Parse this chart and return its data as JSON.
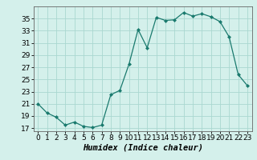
{
  "x": [
    0,
    1,
    2,
    3,
    4,
    5,
    6,
    7,
    8,
    9,
    10,
    11,
    12,
    13,
    14,
    15,
    16,
    17,
    18,
    19,
    20,
    21,
    22,
    23
  ],
  "y": [
    21,
    19.5,
    18.8,
    17.5,
    18.0,
    17.3,
    17.1,
    17.5,
    22.5,
    23.2,
    27.5,
    33.2,
    30.2,
    35.2,
    34.7,
    34.8,
    36.0,
    35.4,
    35.8,
    35.3,
    34.5,
    32.0,
    25.8,
    24.0
  ],
  "line_color": "#1a7a6e",
  "marker": "D",
  "marker_size": 2,
  "bg_color": "#d4f0eb",
  "grid_color": "#aad8d0",
  "xlabel": "Humidex (Indice chaleur)",
  "xlim": [
    -0.5,
    23.5
  ],
  "ylim": [
    16.5,
    37
  ],
  "yticks": [
    17,
    19,
    21,
    23,
    25,
    27,
    29,
    31,
    33,
    35
  ],
  "xticks": [
    0,
    1,
    2,
    3,
    4,
    5,
    6,
    7,
    8,
    9,
    10,
    11,
    12,
    13,
    14,
    15,
    16,
    17,
    18,
    19,
    20,
    21,
    22,
    23
  ],
  "xlabel_fontsize": 7.5,
  "tick_fontsize": 6.5
}
